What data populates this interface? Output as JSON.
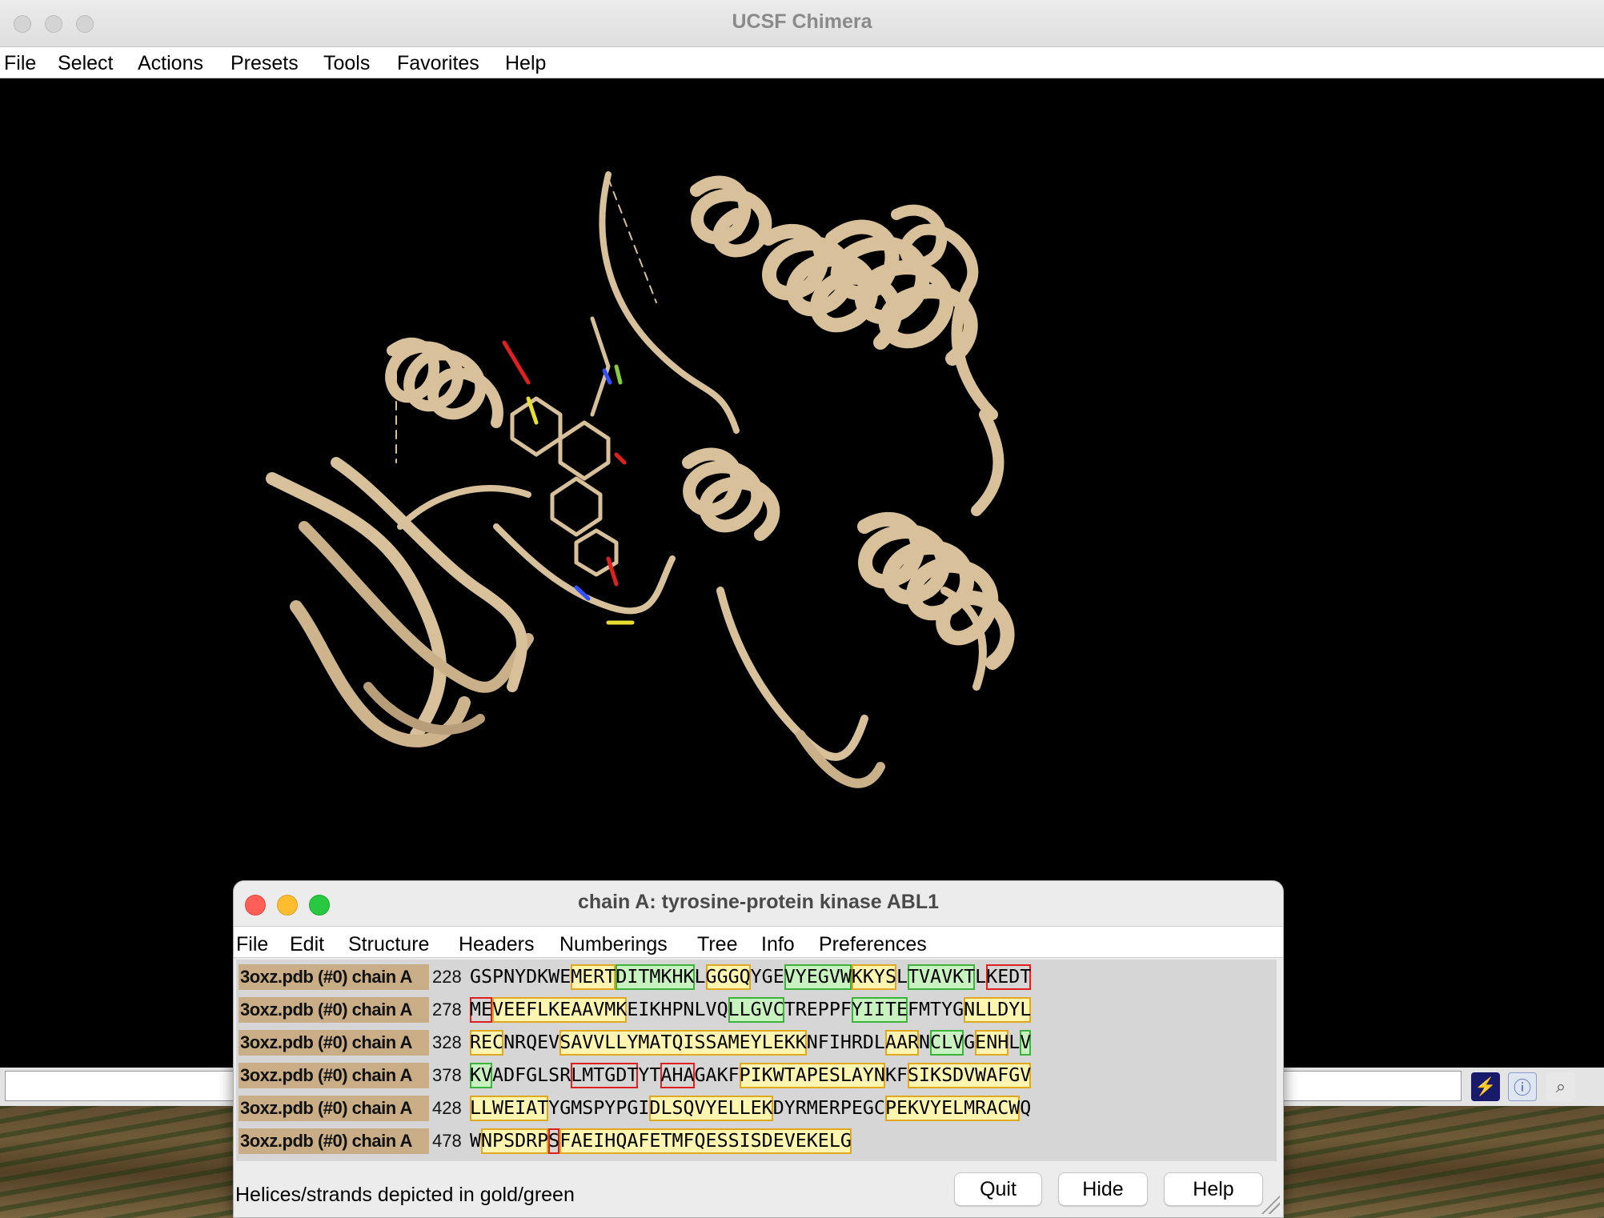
{
  "main_window": {
    "title": "UCSF Chimera",
    "menu": [
      "File",
      "Select",
      "Actions",
      "Presets",
      "Tools",
      "Favorites",
      "Help"
    ],
    "ribbon_color": "#d8c09a",
    "command_line_value": "",
    "toolbar_icons": [
      "lightning-icon",
      "info-icon",
      "magnifier-icon"
    ]
  },
  "sequence_window": {
    "title": "chain A: tyrosine-protein kinase ABL1",
    "menu": [
      "File",
      "Edit",
      "Structure",
      "Headers",
      "Numberings",
      "Tree",
      "Info",
      "Preferences"
    ],
    "rows": [
      {
        "label": "3oxz.pdb (#0) chain A",
        "start": "228",
        "sequence": "GSPNYDKWEMERTDITMKHKLGGGQYGEVYEGVWKKYSLTVAVKTLKEDT"
      },
      {
        "label": "3oxz.pdb (#0) chain A",
        "start": "278",
        "sequence": "MEVEEFLKEAAVMKEIKHPNLVQLLGVCTREPPFYIITEFMTYGNLLDYL"
      },
      {
        "label": "3oxz.pdb (#0) chain A",
        "start": "328",
        "sequence": "RECNRQEVSAVVLLYMATQISSAMEYLEKKNFIHRDLAARNCLVGENHLV"
      },
      {
        "label": "3oxz.pdb (#0) chain A",
        "start": "378",
        "sequence": "KVADFGLSRLMTGDTYTAHAGAKFPIKWTAPESLAYNKFSIKSDVWAFGV"
      },
      {
        "label": "3oxz.pdb (#0) chain A",
        "start": "428",
        "sequence": "LLWEIATYGMSPYPGIDLSQVYELLEKDYRMERPEGCPEKVYELMRACWQ"
      },
      {
        "label": "3oxz.pdb (#0) chain A",
        "start": "478",
        "sequence": "WNPSDRPSFAEIHQAFETMFQESSISDEVEKELG"
      }
    ],
    "status": "Helices/strands depicted in gold/green",
    "buttons": {
      "quit": "Quit",
      "hide": "Hide",
      "help": "Help"
    }
  }
}
